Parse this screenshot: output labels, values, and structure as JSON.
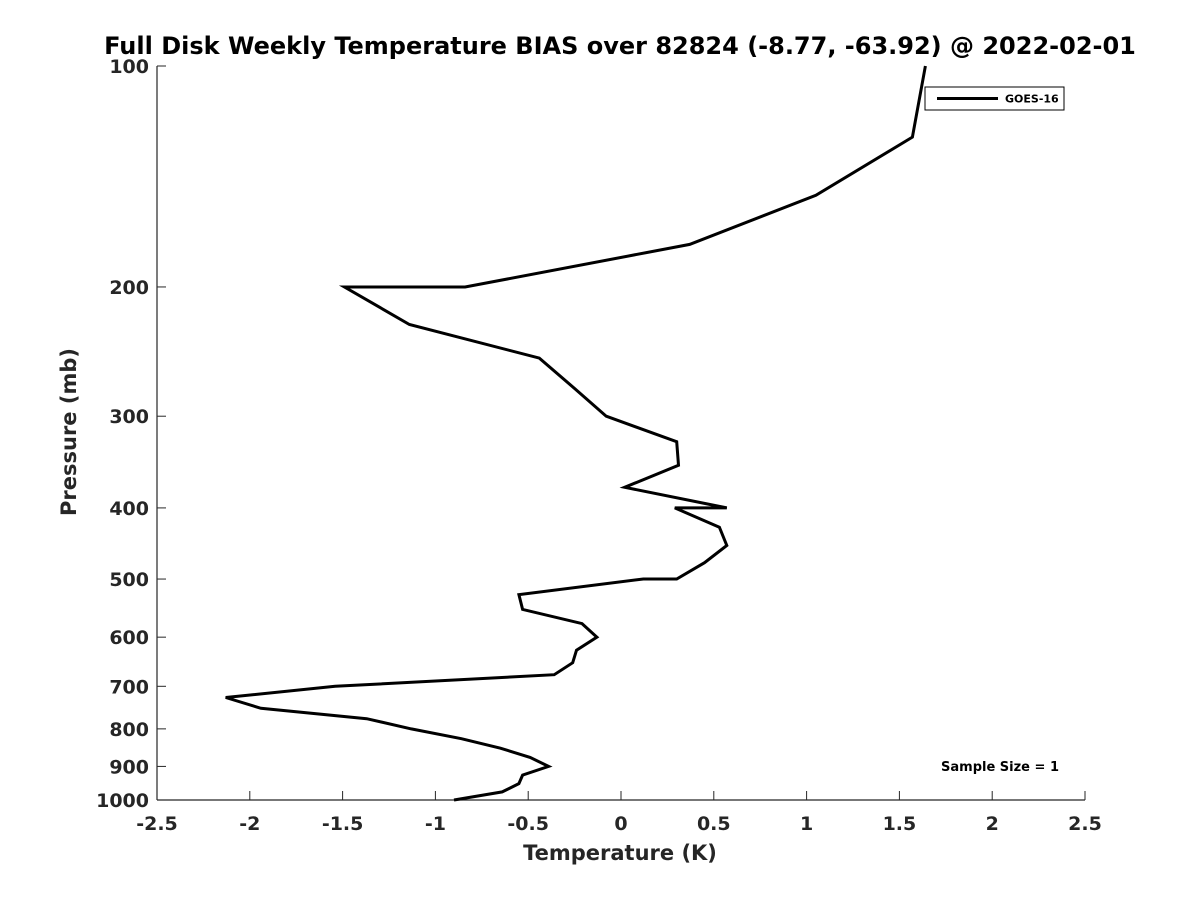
{
  "chart_data": {
    "type": "line",
    "title": "Full Disk Weekly Temperature BIAS over 82824 (-8.77, -63.92) @ 2022-02-01",
    "xlabel": "Temperature (K)",
    "ylabel": "Pressure (mb)",
    "xlim": [
      -2.5,
      2.5
    ],
    "ylim": [
      1000,
      100
    ],
    "y_scale": "log",
    "y_reversed": true,
    "grid": false,
    "x_ticks": [
      -2.5,
      -2,
      -1.5,
      -1,
      -0.5,
      0,
      0.5,
      1,
      1.5,
      2,
      2.5
    ],
    "x_tick_labels": [
      "-2.5",
      "-2",
      "-1.5",
      "-1",
      "-0.5",
      "0",
      "0.5",
      "1",
      "1.5",
      "2",
      "2.5"
    ],
    "y_ticks": [
      100,
      200,
      300,
      400,
      500,
      600,
      700,
      800,
      900,
      1000
    ],
    "y_tick_labels": [
      "100",
      "200",
      "300",
      "400",
      "500",
      "600",
      "700",
      "800",
      "900",
      "1000"
    ],
    "legend_position": "top-right",
    "annotation": "Sample Size = 1",
    "line_color": "#000000",
    "series": [
      {
        "name": "GOES-16",
        "points": [
          [
            1.64,
            100
          ],
          [
            1.57,
            125
          ],
          [
            1.05,
            150
          ],
          [
            0.37,
            175
          ],
          [
            -0.84,
            200
          ],
          [
            -1.49,
            200
          ],
          [
            -1.14,
            225
          ],
          [
            -0.44,
            250
          ],
          [
            -0.25,
            275
          ],
          [
            -0.08,
            300
          ],
          [
            0.3,
            325
          ],
          [
            0.31,
            350
          ],
          [
            0.02,
            375
          ],
          [
            0.57,
            400
          ],
          [
            0.29,
            400
          ],
          [
            0.53,
            425
          ],
          [
            0.57,
            450
          ],
          [
            0.45,
            475
          ],
          [
            0.3,
            500
          ],
          [
            0.12,
            500
          ],
          [
            -0.55,
            525
          ],
          [
            -0.53,
            550
          ],
          [
            -0.21,
            575
          ],
          [
            -0.13,
            600
          ],
          [
            -0.24,
            625
          ],
          [
            -0.26,
            650
          ],
          [
            -0.36,
            675
          ],
          [
            -1.54,
            700
          ],
          [
            -2.13,
            725
          ],
          [
            -1.94,
            750
          ],
          [
            -1.37,
            775
          ],
          [
            -1.13,
            800
          ],
          [
            -0.86,
            825
          ],
          [
            -0.65,
            850
          ],
          [
            -0.49,
            875
          ],
          [
            -0.39,
            900
          ],
          [
            -0.53,
            925
          ],
          [
            -0.55,
            950
          ],
          [
            -0.64,
            975
          ],
          [
            -0.9,
            1000
          ]
        ]
      }
    ]
  }
}
